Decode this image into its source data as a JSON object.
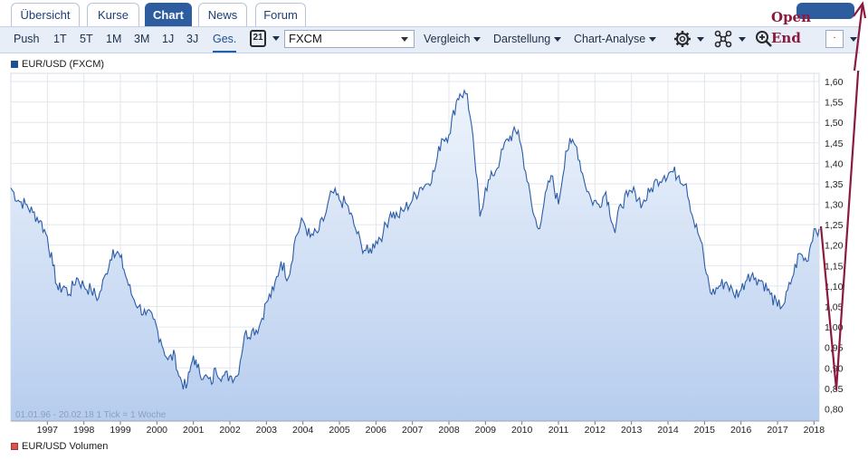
{
  "tabs": [
    {
      "label": "Übersicht",
      "active": false
    },
    {
      "label": "Kurse",
      "active": false
    },
    {
      "label": "Chart",
      "active": true
    },
    {
      "label": "News",
      "active": false
    },
    {
      "label": "Forum",
      "active": false
    }
  ],
  "toolbar": {
    "periods": [
      "Push",
      "1T",
      "5T",
      "1M",
      "3M",
      "1J",
      "3J",
      "Ges."
    ],
    "active_period": "Ges.",
    "calendar_day": "21",
    "exchange": "FXCM",
    "menus": [
      "Vergleich",
      "Darstellung",
      "Chart-Analyse"
    ]
  },
  "annotation": {
    "line1": "Open",
    "line2": "End",
    "color": "#8b1a3e"
  },
  "legend": {
    "top": "EUR/USD (FXCM)",
    "bottom": "EUR/USD Volumen"
  },
  "chart_footer": {
    "range": "01.01.96 - 20.02.18",
    "tick": "1 Tick = 1 Woche"
  },
  "chart_data": {
    "type": "area",
    "ylim": [
      0.77,
      1.62
    ],
    "y_ticks": [
      0.8,
      0.85,
      0.9,
      0.95,
      1.0,
      1.05,
      1.1,
      1.15,
      1.2,
      1.25,
      1.3,
      1.35,
      1.4,
      1.45,
      1.5,
      1.55,
      1.6
    ],
    "y_tick_labels": [
      "0,80",
      "0,85",
      "0,90",
      "0,95",
      "1,00",
      "1,05",
      "1,10",
      "1,15",
      "1,20",
      "1,25",
      "1,30",
      "1,35",
      "1,40",
      "1,45",
      "1,50",
      "1,55",
      "1,60"
    ],
    "xlim": [
      1996.0,
      2018.14
    ],
    "x_ticks": [
      1997,
      1998,
      1999,
      2000,
      2001,
      2002,
      2003,
      2004,
      2005,
      2006,
      2007,
      2008,
      2009,
      2010,
      2011,
      2012,
      2013,
      2014,
      2015,
      2016,
      2017,
      2018
    ],
    "x_tick_labels": [
      "1997",
      "1998",
      "1999",
      "2000",
      "2001",
      "2002",
      "2003",
      "2004",
      "2005",
      "2006",
      "2007",
      "2008",
      "2009",
      "2010",
      "2011",
      "2012",
      "2013",
      "2014",
      "2015",
      "2016",
      "2017",
      "2018"
    ],
    "grid": true,
    "line_color": "#2a5ca8",
    "fill_top": "#eef4fc",
    "fill_bottom": "#b7cdee",
    "series": [
      {
        "name": "EUR/USD (FXCM)",
        "x": [
          1996.0,
          1996.2,
          1996.4,
          1996.6,
          1996.8,
          1997.0,
          1997.15,
          1997.3,
          1997.45,
          1997.6,
          1997.8,
          1998.0,
          1998.2,
          1998.4,
          1998.6,
          1998.8,
          1999.0,
          1999.1,
          1999.3,
          1999.5,
          1999.7,
          1999.9,
          2000.1,
          2000.3,
          2000.5,
          2000.6,
          2000.8,
          2000.9,
          2001.0,
          2001.1,
          2001.3,
          2001.5,
          2001.6,
          2001.8,
          2002.0,
          2002.2,
          2002.4,
          2002.6,
          2002.8,
          2003.0,
          2003.2,
          2003.4,
          2003.6,
          2003.8,
          2004.0,
          2004.2,
          2004.4,
          2004.6,
          2004.8,
          2005.0,
          2005.2,
          2005.4,
          2005.6,
          2005.8,
          2006.0,
          2006.2,
          2006.4,
          2006.6,
          2006.8,
          2007.0,
          2007.2,
          2007.4,
          2007.6,
          2007.8,
          2008.0,
          2008.2,
          2008.3,
          2008.5,
          2008.7,
          2008.85,
          2009.0,
          2009.2,
          2009.4,
          2009.6,
          2009.9,
          2010.1,
          2010.3,
          2010.45,
          2010.6,
          2010.8,
          2011.0,
          2011.2,
          2011.35,
          2011.5,
          2011.7,
          2011.9,
          2012.1,
          2012.3,
          2012.55,
          2012.7,
          2012.9,
          2013.1,
          2013.3,
          2013.5,
          2013.7,
          2013.9,
          2014.1,
          2014.3,
          2014.5,
          2014.7,
          2014.9,
          2015.05,
          2015.2,
          2015.4,
          2015.6,
          2015.8,
          2016.0,
          2016.2,
          2016.4,
          2016.6,
          2016.8,
          2017.0,
          2017.2,
          2017.4,
          2017.6,
          2017.8,
          2018.0,
          2018.14
        ],
        "y": [
          1.34,
          1.31,
          1.3,
          1.28,
          1.26,
          1.22,
          1.15,
          1.09,
          1.1,
          1.08,
          1.12,
          1.1,
          1.09,
          1.07,
          1.13,
          1.19,
          1.17,
          1.14,
          1.08,
          1.05,
          1.03,
          1.02,
          0.97,
          0.92,
          0.93,
          0.88,
          0.85,
          0.89,
          0.93,
          0.9,
          0.88,
          0.86,
          0.9,
          0.88,
          0.88,
          0.88,
          0.98,
          0.99,
          1.0,
          1.06,
          1.09,
          1.16,
          1.12,
          1.22,
          1.26,
          1.22,
          1.23,
          1.27,
          1.33,
          1.31,
          1.3,
          1.25,
          1.2,
          1.18,
          1.21,
          1.23,
          1.28,
          1.27,
          1.29,
          1.31,
          1.34,
          1.35,
          1.38,
          1.46,
          1.47,
          1.55,
          1.57,
          1.57,
          1.42,
          1.27,
          1.34,
          1.37,
          1.41,
          1.46,
          1.48,
          1.38,
          1.28,
          1.24,
          1.3,
          1.37,
          1.3,
          1.43,
          1.45,
          1.44,
          1.36,
          1.31,
          1.3,
          1.33,
          1.23,
          1.3,
          1.32,
          1.33,
          1.3,
          1.33,
          1.36,
          1.37,
          1.38,
          1.37,
          1.35,
          1.26,
          1.21,
          1.13,
          1.08,
          1.1,
          1.11,
          1.08,
          1.09,
          1.13,
          1.12,
          1.11,
          1.08,
          1.05,
          1.06,
          1.12,
          1.18,
          1.16,
          1.24,
          1.24
        ]
      }
    ]
  }
}
